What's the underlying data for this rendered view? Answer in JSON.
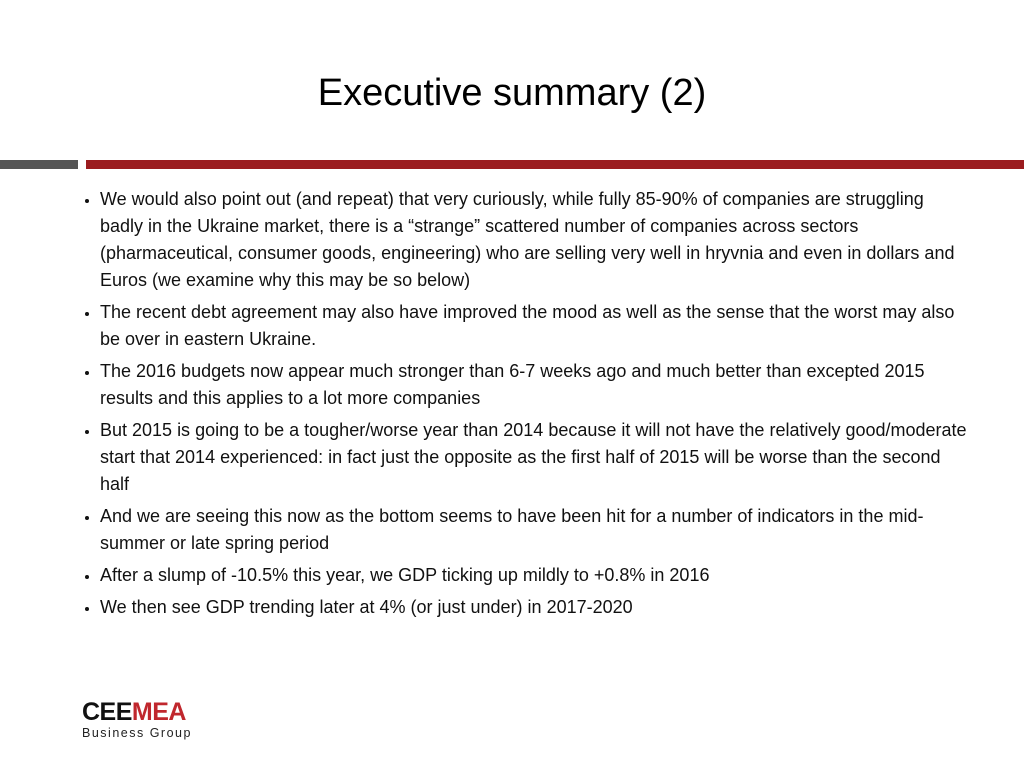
{
  "header": {
    "title": "Executive summary (2)"
  },
  "bullets": [
    "We would also point out (and repeat) that very curiously, while fully 85-90% of companies are struggling badly in the Ukraine market, there is a “strange” scattered number of companies across sectors (pharmaceutical, consumer goods, engineering) who are selling very well in hryvnia and even in dollars and Euros (we examine why this may be so below)",
    "The recent debt agreement may also have improved the mood as well as the sense that the worst may also be over in eastern Ukraine.",
    "The 2016 budgets now appear much stronger than 6-7 weeks ago and much better than excepted 2015 results and this applies to a lot more companies",
    "But 2015 is going to be a tougher/worse year than 2014 because it will not have the relatively good/moderate start that 2014 experienced: in fact just the opposite as the first half of 2015 will be worse than the second half",
    "And we are seeing this now as the bottom seems to have been hit for a number of indicators in the mid-summer or late spring period",
    "After a slump of -10.5% this year, we GDP ticking up mildly to +0.8% in 2016",
    "We then see GDP trending later at 4% (or just under) in 2017-2020"
  ],
  "logo": {
    "part1": "CEE",
    "part2": "MEA",
    "subtitle": "Business Group"
  }
}
